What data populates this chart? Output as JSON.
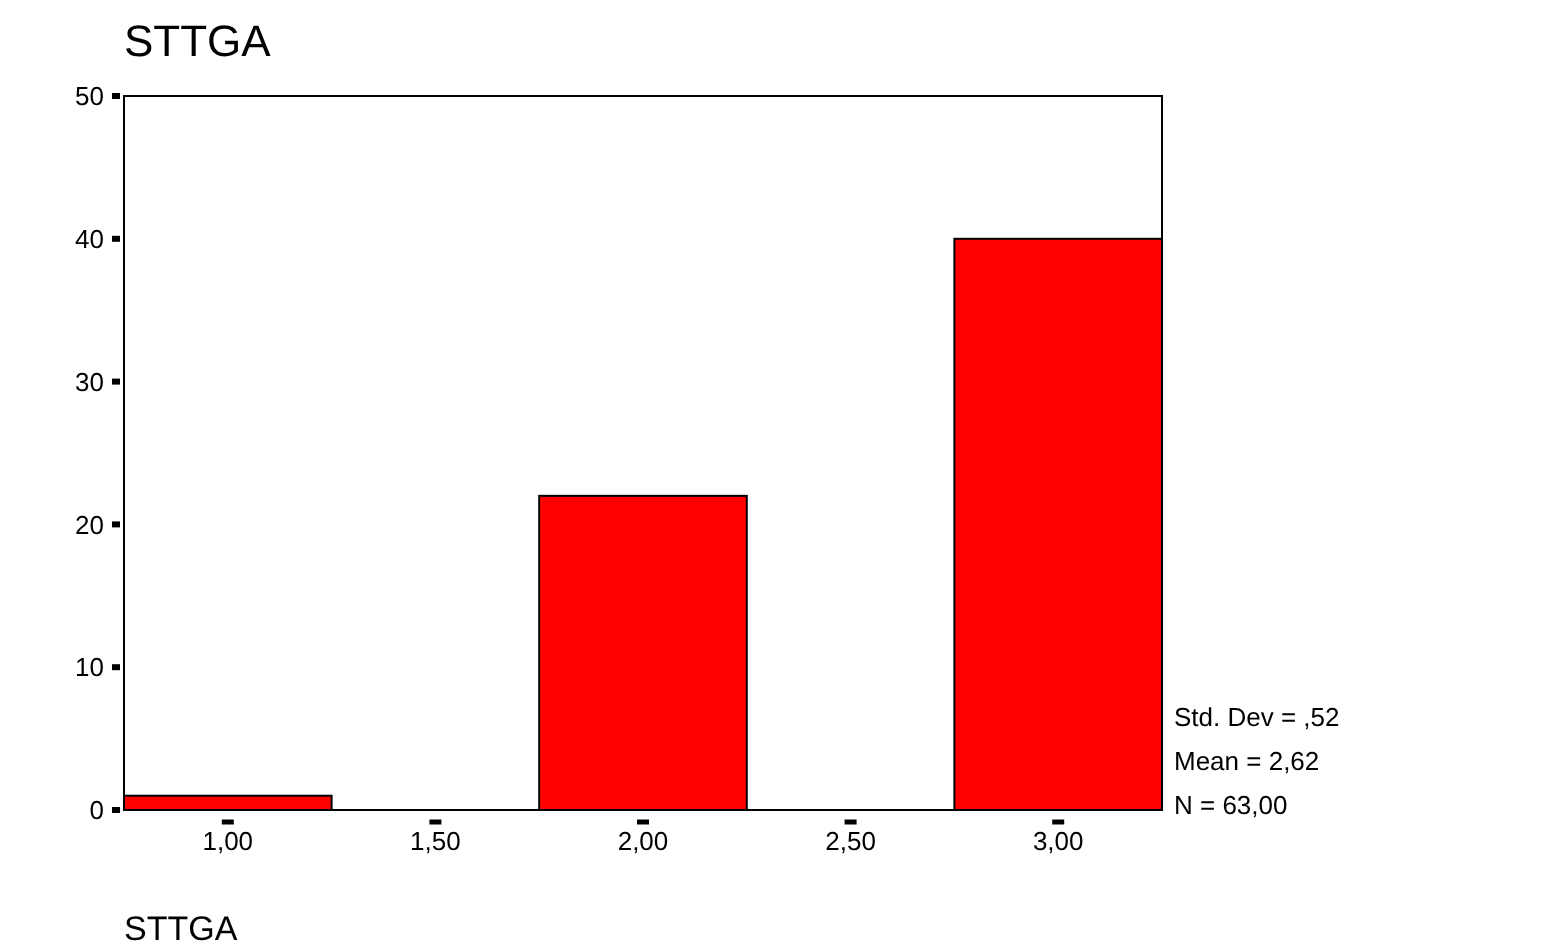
{
  "chart_data": {
    "type": "histogram",
    "title": "STTGA",
    "xlabel": "STTGA",
    "bins": [
      0.75,
      1.25,
      1.75,
      2.25,
      2.75,
      3.25
    ],
    "values": [
      1,
      0,
      22,
      0,
      40
    ],
    "color": "#ff0000",
    "xlim": [
      0.75,
      3.25
    ],
    "xticks": [
      {
        "value": 1,
        "label": "1,00"
      },
      {
        "value": 1.5,
        "label": "1,50"
      },
      {
        "value": 2,
        "label": "2,00"
      },
      {
        "value": 2.5,
        "label": "2,50"
      },
      {
        "value": 3,
        "label": "3,00"
      }
    ],
    "ylim": [
      0,
      50
    ],
    "yticks": [
      0,
      10,
      20,
      30,
      40,
      50
    ],
    "grid": false,
    "annotations": [
      "Std. Dev = ,52",
      "Mean = 2,62",
      "N = 63,00"
    ]
  }
}
